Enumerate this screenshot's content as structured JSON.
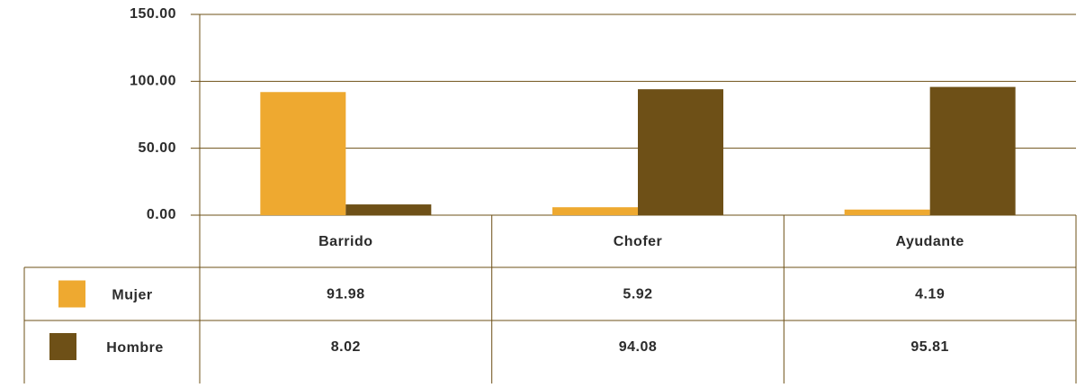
{
  "chart_data": {
    "type": "bar",
    "categories": [
      "Barrido",
      "Chofer",
      "Ayudante"
    ],
    "series": [
      {
        "name": "Mujer",
        "color": "#eea930",
        "values": [
          91.98,
          5.92,
          4.19
        ]
      },
      {
        "name": "Hombre",
        "color": "#6e5017",
        "values": [
          8.02,
          94.08,
          95.81
        ]
      }
    ],
    "ylim": [
      0,
      150
    ],
    "yticks": [
      {
        "value": 0,
        "label": "0.00"
      },
      {
        "value": 50,
        "label": "50.00"
      },
      {
        "value": 100,
        "label": "100.00"
      },
      {
        "value": 150,
        "label": "150.00"
      }
    ],
    "grid": true,
    "data_table": true
  }
}
